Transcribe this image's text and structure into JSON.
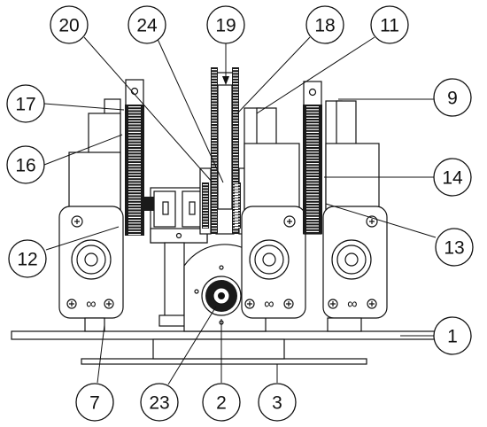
{
  "diagram": {
    "callouts": {
      "c20": "20",
      "c24": "24",
      "c19": "19",
      "c18": "18",
      "c11": "11",
      "c17": "17",
      "c9": "9",
      "c16": "16",
      "c14": "14",
      "c12": "12",
      "c13": "13",
      "c1": "1",
      "c7": "7",
      "c23": "23",
      "c2": "2",
      "c3": "3"
    }
  }
}
